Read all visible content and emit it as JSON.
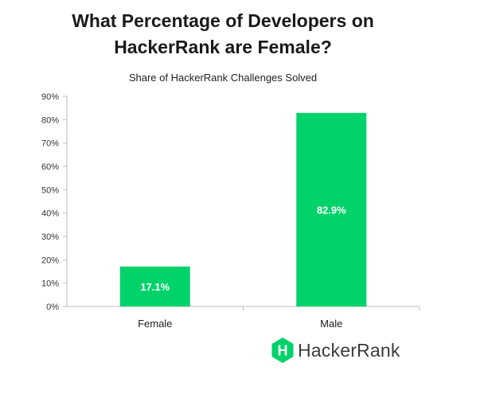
{
  "title_line1": "What Percentage of Developers on",
  "title_line2": "HackerRank are Female?",
  "chart_data": {
    "type": "bar",
    "title": "What Percentage of Developers on HackerRank are Female?",
    "subtitle": "Share of HackerRank Challenges Solved",
    "categories": [
      "Female",
      "Male"
    ],
    "values": [
      17.1,
      82.9
    ],
    "data_labels": [
      "17.1%",
      "82.9%"
    ],
    "ylim": [
      0,
      90
    ],
    "yticks": [
      "0%",
      "10%",
      "20%",
      "30%",
      "40%",
      "50%",
      "60%",
      "70%",
      "80%",
      "90%"
    ],
    "ytick_step": 10,
    "grid": false,
    "bar_color": "#00d26a",
    "label_color": "#ffffff"
  },
  "logo": {
    "text": "HackerRank",
    "letter": "H",
    "color": "#00d26a"
  }
}
